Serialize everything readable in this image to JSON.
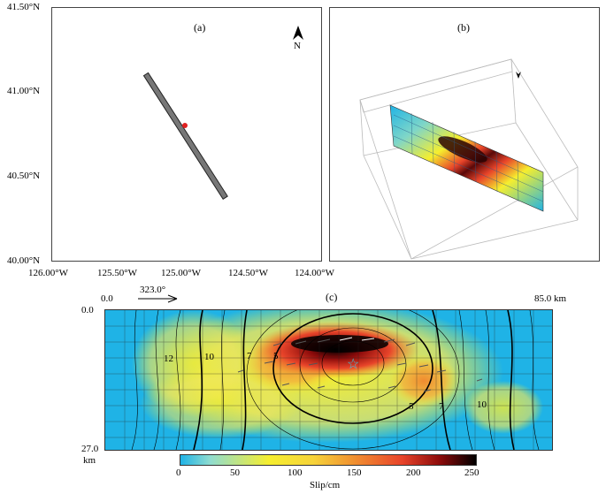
{
  "panel_a": {
    "label": "(a)",
    "north": "N",
    "lat_ticks": [
      "41.50°N",
      "41.00°N",
      "40.50°N",
      "40.00°N"
    ],
    "lon_ticks": [
      "126.00°W",
      "125.50°W",
      "125.00°W",
      "124.50°W",
      "124.00°W"
    ]
  },
  "panel_b": {
    "label": "(b)"
  },
  "panel_c": {
    "label": "(c)",
    "strike_label": "323.0°",
    "x_start": "0.0",
    "x_end": "85.0 km",
    "depth_top": "0.0",
    "depth_bottom": "27.0",
    "depth_unit": "km",
    "contour_labels": [
      "12",
      "10",
      "7",
      "5",
      "5",
      "7",
      "10"
    ],
    "hypocenter_symbol": "☆",
    "colors": {
      "low": "#1fb3e6",
      "mid": "#f6ee2e",
      "high": "#e8442a",
      "peak": "#000000",
      "hypocenter": "#3ec9e0"
    }
  },
  "colorbar": {
    "ticks": [
      "0",
      "50",
      "100",
      "150",
      "200",
      "250"
    ],
    "label": "Slip/cm",
    "range": [
      0,
      250
    ]
  }
}
